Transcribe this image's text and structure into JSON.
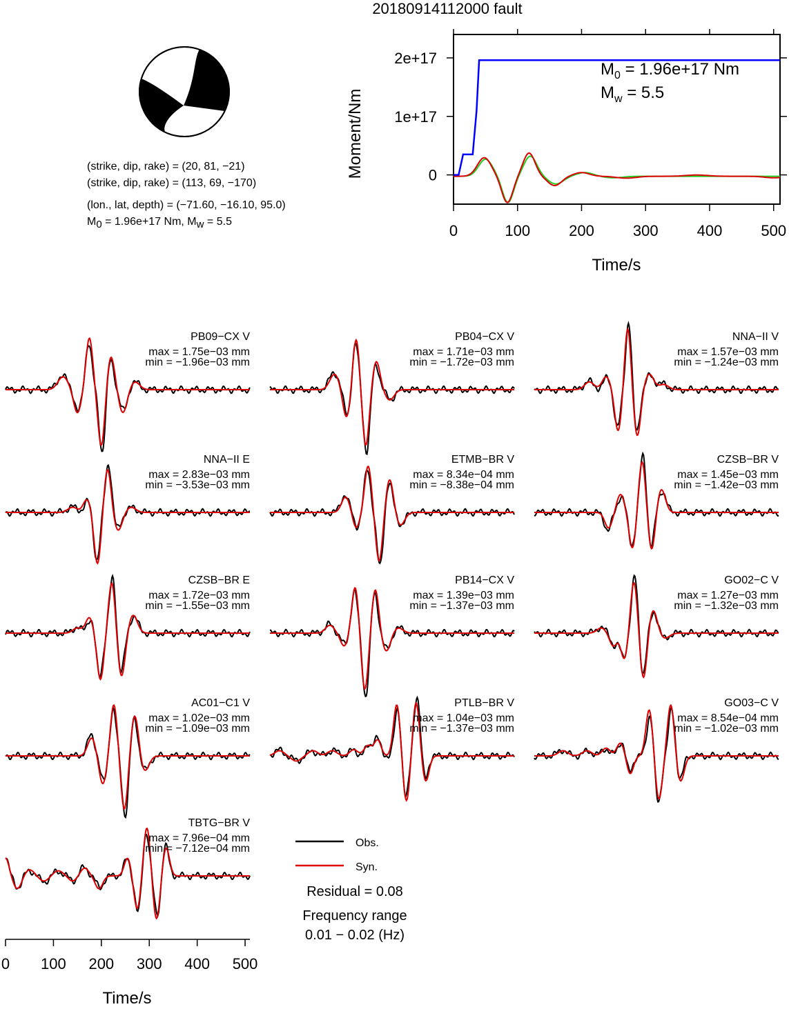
{
  "title": "20180914112000 fault",
  "focal": {
    "plane1": "(strike, dip, rake) = (20, 81, −21)",
    "plane2": "(strike, dip, rake) = (113, 69, −170)",
    "location": "(lon., lat, depth) = (−71.60, −16.10, 95.0)",
    "moment_line": {
      "m0_prefix": "M",
      "m0_sub": "0",
      "m0_value": " = 1.96e+17 Nm, M",
      "mw_sub": "w",
      "mw_value": " = 5.5"
    }
  },
  "moment_annotation": {
    "m0_prefix": "M",
    "m0_sub": "0",
    "m0_value": " = 1.96e+17 Nm",
    "mw_prefix": "M",
    "mw_sub": "w",
    "mw_value": " = 5.5"
  },
  "colors": {
    "moment": "#0000ff",
    "obs": "#000000",
    "syn": "#dd0000",
    "stf_green": "#22cc22"
  },
  "legend": {
    "obs": "Obs.",
    "syn": "Syn."
  },
  "residual": "Residual = 0.08",
  "freq_label": "Frequency range",
  "freq_value": "0.01 − 0.02 (Hz)",
  "chart_data": [
    {
      "type": "line",
      "xlabel": "Time/s",
      "ylabel": "Moment/Nm",
      "xlim": [
        0,
        510
      ],
      "ylim": [
        -5e+16,
        2.4e+17
      ],
      "xticks": [
        0,
        100,
        200,
        300,
        400,
        500
      ],
      "yticks": [
        0,
        1e+17,
        2e+17
      ],
      "yticklabels": [
        "0",
        "1e+17",
        "2e+17"
      ],
      "series": [
        {
          "color": "#0000ff",
          "x": [
            0,
            8,
            15,
            22,
            30,
            36,
            40,
            510
          ],
          "y": [
            0,
            0,
            3.5e+16,
            3.5e+16,
            3.5e+16,
            1.1e+17,
            1.96e+17,
            1.96e+17
          ]
        }
      ]
    },
    {
      "type": "line",
      "xlabel": "Time/s",
      "xlim": [
        0,
        510
      ],
      "xticks": [
        0,
        100,
        200,
        300,
        400,
        500
      ],
      "stations": [
        {
          "name": "PB09−CX V",
          "max": "max = 1.75e−03 mm",
          "min": "min = −1.96e−03 mm",
          "wavelets": [
            [
              120,
              0.25,
              15
            ],
            [
              150,
              -0.45,
              11
            ],
            [
              175,
              1.0,
              10
            ],
            [
              200,
              -1.1,
              10
            ],
            [
              220,
              0.65,
              11
            ],
            [
              245,
              -0.45,
              12
            ],
            [
              270,
              0.15,
              14
            ]
          ]
        },
        {
          "name": "PB04−CX V",
          "max": "max = 1.71e−03 mm",
          "min": "min = −1.72e−03 mm",
          "wavelets": [
            [
              135,
              0.3,
              14
            ],
            [
              160,
              -0.55,
              11
            ],
            [
              180,
              1.0,
              10
            ],
            [
              200,
              -1.1,
              10
            ],
            [
              222,
              0.55,
              11
            ],
            [
              250,
              -0.2,
              13
            ]
          ]
        },
        {
          "name": "NNA−II V",
          "max": "max = 1.57e−03 mm",
          "min": "min = −1.24e−03 mm",
          "wavelets": [
            [
              115,
              0.15,
              14
            ],
            [
              150,
              0.25,
              12
            ],
            [
              175,
              -0.8,
              10
            ],
            [
              195,
              1.2,
              9
            ],
            [
              215,
              -0.9,
              10
            ],
            [
              240,
              0.3,
              13
            ],
            [
              270,
              0.1,
              14
            ]
          ]
        },
        {
          "name": "NNA−II E",
          "max": "max = 2.83e−03 mm",
          "min": "min = −3.53e−03 mm",
          "wavelets": [
            [
              140,
              0.1,
              14
            ],
            [
              170,
              0.25,
              11
            ],
            [
              192,
              -1.0,
              10
            ],
            [
              213,
              0.85,
              10
            ],
            [
              235,
              -0.35,
              12
            ],
            [
              262,
              0.1,
              14
            ]
          ]
        },
        {
          "name": "ETMB−BR V",
          "max": "max = 8.34e−04 mm",
          "min": "min = −8.38e−04 mm",
          "wavelets": [
            [
              158,
              0.3,
              12
            ],
            [
              180,
              -0.3,
              10
            ],
            [
              205,
              0.9,
              10
            ],
            [
              228,
              -0.95,
              10
            ],
            [
              250,
              0.65,
              11
            ],
            [
              272,
              -0.25,
              13
            ]
          ]
        },
        {
          "name": "CZSB−BR V",
          "max": "max = 1.45e−03 mm",
          "min": "min = −1.42e−03 mm",
          "wavelets": [
            [
              155,
              -0.3,
              11
            ],
            [
              180,
              0.35,
              11
            ],
            [
              205,
              -0.7,
              10
            ],
            [
              225,
              1.0,
              10
            ],
            [
              245,
              -0.75,
              10
            ],
            [
              265,
              0.45,
              12
            ]
          ]
        },
        {
          "name": "CZSB−BR E",
          "max": "max = 1.72e−03 mm",
          "min": "min = −1.55e−03 mm",
          "wavelets": [
            [
              150,
              0.1,
              13
            ],
            [
              175,
              0.3,
              11
            ],
            [
              198,
              -0.9,
              10
            ],
            [
              222,
              1.0,
              10
            ],
            [
              242,
              -0.85,
              11
            ],
            [
              266,
              0.35,
              13
            ]
          ]
        },
        {
          "name": "PB14−CX V",
          "max": "max = 1.39e−03 mm",
          "min": "min = −1.37e−03 mm",
          "wavelets": [
            [
              125,
              0.15,
              13
            ],
            [
              155,
              -0.25,
              11
            ],
            [
              178,
              0.9,
              10
            ],
            [
              198,
              -1.1,
              10
            ],
            [
              220,
              0.85,
              10
            ],
            [
              243,
              -0.35,
              12
            ],
            [
              268,
              0.1,
              14
            ]
          ]
        },
        {
          "name": "GO02−C V",
          "max": "max = 1.27e−03 mm",
          "min": "min = −1.32e−03 mm",
          "wavelets": [
            [
              140,
              0.1,
              13
            ],
            [
              165,
              -0.25,
              11
            ],
            [
              188,
              -0.5,
              10
            ],
            [
              208,
              1.0,
              10
            ],
            [
              228,
              -0.9,
              10
            ],
            [
              248,
              0.45,
              12
            ],
            [
              272,
              -0.1,
              14
            ]
          ]
        },
        {
          "name": "AC01−C1 V",
          "max": "max = 1.02e−03 mm",
          "min": "min = −1.09e−03 mm",
          "wavelets": [
            [
              180,
              0.35,
              12
            ],
            [
              203,
              -0.55,
              11
            ],
            [
              226,
              1.0,
              10
            ],
            [
              248,
              -1.05,
              10
            ],
            [
              270,
              0.8,
              11
            ],
            [
              290,
              -0.3,
              13
            ]
          ]
        },
        {
          "name": "PTLB−BR V",
          "max": "max = 1.04e−03 mm",
          "min": "min = −1.37e−03 mm",
          "wavelets": [
            [
              20,
              0.1,
              14
            ],
            [
              55,
              -0.1,
              14
            ],
            [
              90,
              0.1,
              14
            ],
            [
              130,
              0.1,
              14
            ],
            [
              175,
              0.12,
              12
            ],
            [
              205,
              0.2,
              12
            ],
            [
              225,
              0.3,
              10
            ],
            [
              265,
              1.0,
              10
            ],
            [
              285,
              -0.9,
              10
            ],
            [
              305,
              1.05,
              10
            ],
            [
              325,
              -0.5,
              10
            ]
          ]
        },
        {
          "name": "GO03−C V",
          "max": "max = 8.54e−04 mm",
          "min": "min = −1.02e−03 mm",
          "wavelets": [
            [
              60,
              0.1,
              14
            ],
            [
              110,
              0.1,
              14
            ],
            [
              150,
              0.15,
              12
            ],
            [
              180,
              0.25,
              11
            ],
            [
              200,
              -0.35,
              10
            ],
            [
              240,
              0.9,
              10
            ],
            [
              260,
              -0.85,
              10
            ],
            [
              285,
              1.0,
              10
            ],
            [
              305,
              -0.5,
              11
            ]
          ]
        },
        {
          "name": "TBTG−BR V",
          "max": "max = 7.96e−04 mm",
          "min": "min = −7.12e−04 mm",
          "wavelets": [
            [
              0,
              0.35,
              10
            ],
            [
              25,
              -0.25,
              12
            ],
            [
              50,
              0.12,
              14
            ],
            [
              80,
              -0.1,
              14
            ],
            [
              110,
              0.1,
              14
            ],
            [
              140,
              -0.1,
              12
            ],
            [
              165,
              0.15,
              12
            ],
            [
              195,
              -0.25,
              11
            ],
            [
              255,
              0.35,
              10
            ],
            [
              275,
              -0.65,
              10
            ],
            [
              295,
              0.95,
              10
            ],
            [
              315,
              -0.85,
              10
            ],
            [
              335,
              0.55,
              10
            ]
          ]
        }
      ]
    }
  ]
}
